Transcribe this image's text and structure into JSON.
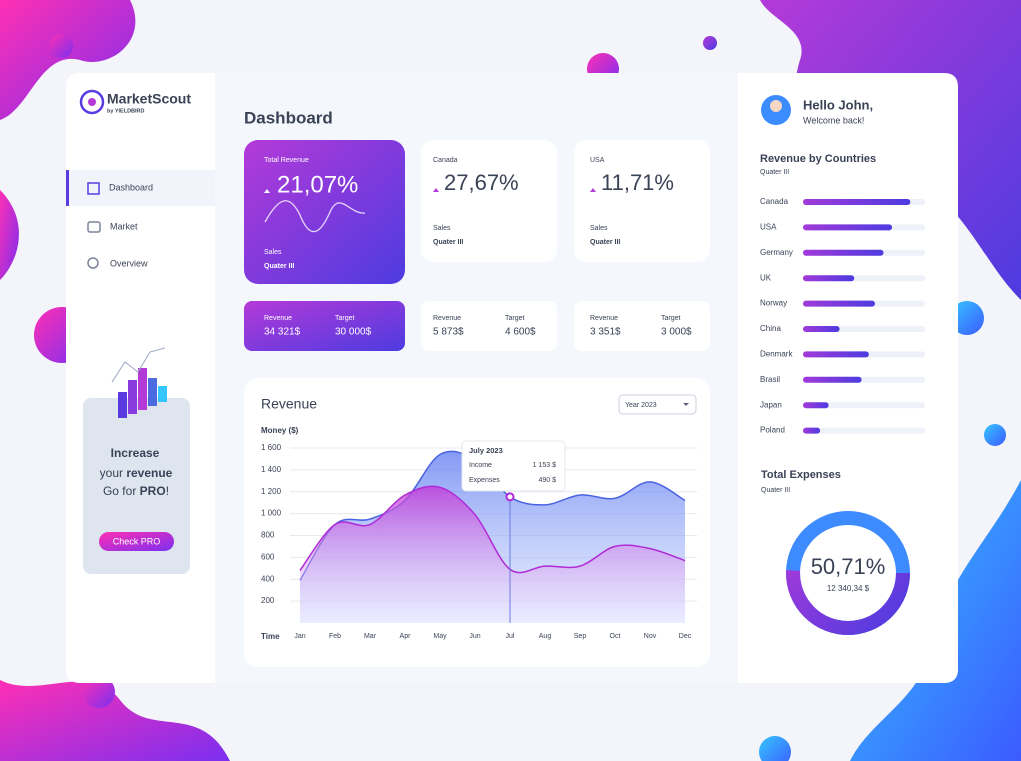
{
  "brand": {
    "name": "MarketScout",
    "sub": "by YIELDBIRD"
  },
  "nav": [
    "Dashboard",
    "Market",
    "Overview"
  ],
  "promo": {
    "line1": "Increase",
    "line2_plain": "your",
    "line2_bold": "revenue",
    "line3_plain": "Go for",
    "line3_bold": "PRO",
    "line3_end": "!",
    "button": "Check PRO"
  },
  "page_title": "Dashboard",
  "cards": [
    {
      "label": "Total Revenue",
      "value": "21,07%",
      "sub_label": "Sales",
      "period": "Quater III"
    },
    {
      "label": "Canada",
      "value": "27,67%",
      "sub_label": "Sales",
      "period": "Quater III"
    },
    {
      "label": "USA",
      "value": "11,71%",
      "sub_label": "Sales",
      "period": "Quater III"
    }
  ],
  "targets": [
    {
      "revenue_label": "Revenue",
      "revenue": "34 321$",
      "target_label": "Target",
      "target": "30 000$"
    },
    {
      "revenue_label": "Revenue",
      "revenue": "5 873$",
      "target_label": "Target",
      "target": "4 600$"
    },
    {
      "revenue_label": "Revenue",
      "revenue": "3 351$",
      "target_label": "Target",
      "target": "3 000$"
    }
  ],
  "revenue_chart": {
    "type": "area",
    "title": "Revenue",
    "selector": "Year 2023",
    "y_label": "Money ($)",
    "x_label": "Time",
    "categories": [
      "Jan",
      "Feb",
      "Mar",
      "Apr",
      "May",
      "Jun",
      "Jul",
      "Aug",
      "Sep",
      "Oct",
      "Nov",
      "Dec"
    ],
    "ylim": [
      0,
      1700
    ],
    "yticks": [
      200,
      400,
      600,
      800,
      {
        "value": 1000,
        "label": "1 000"
      },
      {
        "value": 1200,
        "label": "1 200"
      },
      {
        "value": 1400,
        "label": "1 400"
      },
      {
        "value": 1600,
        "label": "1 600"
      }
    ],
    "series": [
      {
        "name": "Income",
        "color": "#4a63e0",
        "values": [
          390,
          900,
          950,
          1120,
          1540,
          1490,
          1153,
          1080,
          1170,
          1140,
          1290,
          1120
        ]
      },
      {
        "name": "Expenses",
        "color": "#b02ad6",
        "values": [
          480,
          900,
          900,
          1170,
          1240,
          990,
          490,
          520,
          520,
          700,
          680,
          570
        ]
      }
    ],
    "tooltip": {
      "title": "July 2023",
      "income": "1 153 $",
      "expenses": "490 $"
    }
  },
  "user": {
    "greeting": "Hello John,",
    "welcome": "Welcome back!"
  },
  "countries": {
    "type": "bar",
    "title": "Revenue by Countries",
    "period": "Quater III",
    "categories": [
      "Canada",
      "USA",
      "Germany",
      "UK",
      "Norway",
      "China",
      "Denmark",
      "Brasil",
      "Japan",
      "Poland"
    ],
    "values": [
      88,
      73,
      66,
      42,
      59,
      30,
      54,
      48,
      21,
      14
    ],
    "xlim": [
      0,
      100
    ]
  },
  "expenses": {
    "type": "donut",
    "title": "Total Expenses",
    "period": "Quater III",
    "percent": 50.71,
    "percent_label": "50,71%",
    "amount": "12 340,34 $"
  }
}
